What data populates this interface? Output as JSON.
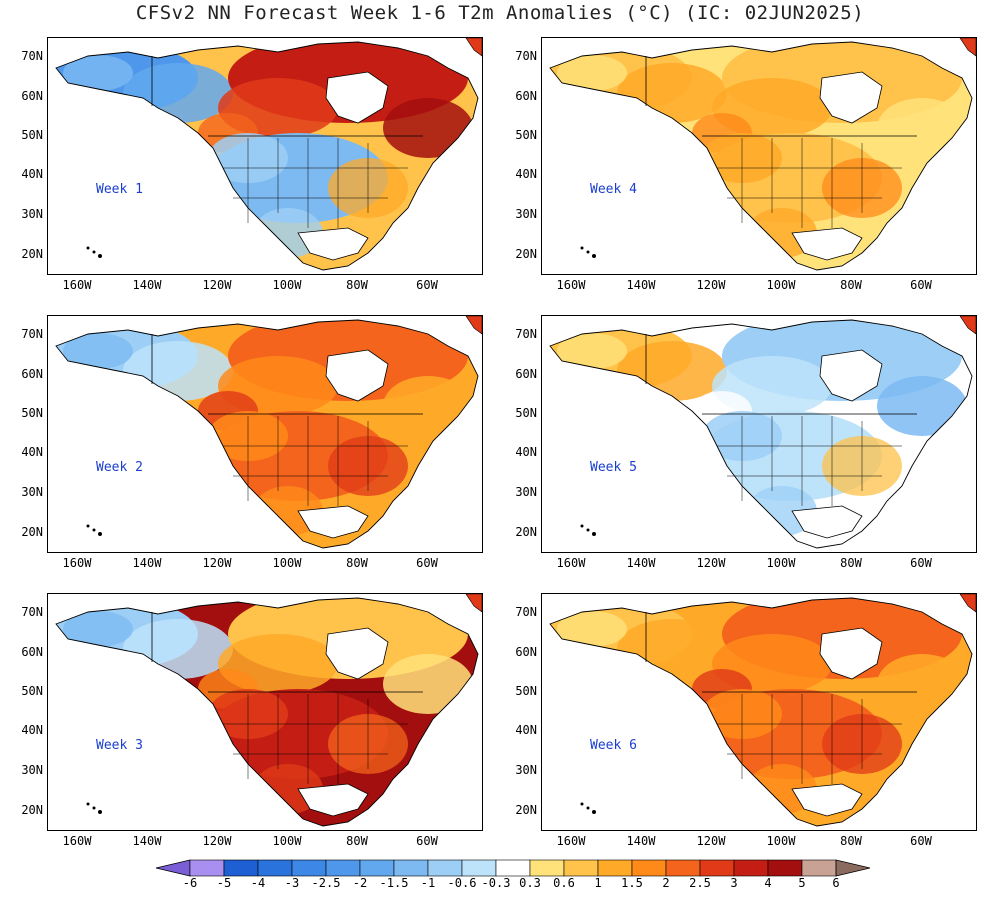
{
  "title": "CFSv2 NN Forecast Week 1-6 T2m Anomalies (°C) (IC: 02JUN2025)",
  "lat_labels": [
    "70N",
    "60N",
    "50N",
    "40N",
    "30N",
    "20N"
  ],
  "lon_labels": [
    "160W",
    "140W",
    "120W",
    "100W",
    "80W",
    "60W"
  ],
  "panels": [
    {
      "label": "Week 1",
      "col": 0,
      "row": 0,
      "west": "neg_strong",
      "north": "pos_strong",
      "us": "mixed"
    },
    {
      "label": "Week 4",
      "col": 1,
      "row": 0,
      "west": "pos_weak",
      "north": "pos_weak",
      "us": "pos_weak"
    },
    {
      "label": "Week 2",
      "col": 0,
      "row": 1,
      "west": "neg_weak",
      "north": "pos_mid",
      "us": "pos_mid"
    },
    {
      "label": "Week 5",
      "col": 1,
      "row": 1,
      "west": "pos_weak",
      "north": "neg_weak",
      "us": "mixed_weak"
    },
    {
      "label": "Week 3",
      "col": 0,
      "row": 2,
      "west": "neg_weak",
      "north": "pos_weak",
      "us": "pos_strong"
    },
    {
      "label": "Week 6",
      "col": 1,
      "row": 2,
      "west": "pos_weak",
      "north": "pos_mid",
      "us": "pos_mid"
    }
  ],
  "colorbar": {
    "tick_labels": [
      "-6",
      "-5",
      "-4",
      "-3",
      "-2.5",
      "-2",
      "-1.5",
      "-1",
      "-0.6",
      "-0.3",
      "0.3",
      "0.6",
      "1",
      "1.5",
      "2",
      "2.5",
      "3",
      "4",
      "5",
      "6"
    ],
    "colors": [
      "#a98ff0",
      "#1f5fd4",
      "#2a72dc",
      "#3d87e6",
      "#4e97ea",
      "#62a8ee",
      "#7dbaf2",
      "#9dcff6",
      "#bde3fa",
      "#ffffff",
      "#ffe27a",
      "#ffc24a",
      "#ffa928",
      "#ff8a1a",
      "#f4641c",
      "#e03a18",
      "#c41e14",
      "#a30e0e",
      "#c8a395"
    ],
    "arrow_low_color": "#7b5ed6",
    "arrow_high_color": "#8c6b5f"
  }
}
